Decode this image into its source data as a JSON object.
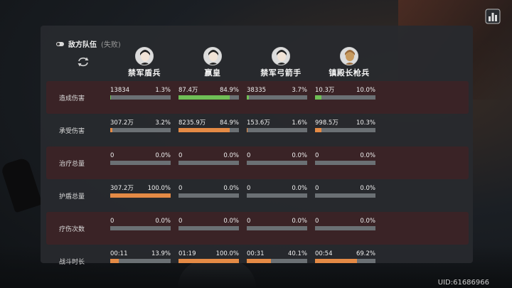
{
  "colors": {
    "orange": "#e48a45",
    "green": "#6fbf56",
    "track": "#6b7074"
  },
  "header": {
    "team_title": "敌方队伍",
    "team_status": "(失败)"
  },
  "uid": "UID:61686966",
  "heroes": [
    {
      "name": "禁军盾兵",
      "avatar_icon": "male-soldier-avatar-icon"
    },
    {
      "name": "嬴皇",
      "avatar_icon": "female-emperor-avatar-icon"
    },
    {
      "name": "禁军弓箭手",
      "avatar_icon": "male-archer-avatar-icon"
    },
    {
      "name": "镇殿长枪兵",
      "avatar_icon": "armored-spearman-avatar-icon"
    }
  ],
  "rows": [
    {
      "label": "造成伤害",
      "highlight": true,
      "fill_color": "green",
      "cells": [
        {
          "value": "13834",
          "pct": "1.3%",
          "fill": 0.013
        },
        {
          "value": "87.4万",
          "pct": "84.9%",
          "fill": 0.849
        },
        {
          "value": "38335",
          "pct": "3.7%",
          "fill": 0.037
        },
        {
          "value": "10.3万",
          "pct": "10.0%",
          "fill": 0.1
        }
      ]
    },
    {
      "label": "承受伤害",
      "highlight": false,
      "fill_color": "orange",
      "cells": [
        {
          "value": "307.2万",
          "pct": "3.2%",
          "fill": 0.032
        },
        {
          "value": "8235.9万",
          "pct": "84.9%",
          "fill": 0.849
        },
        {
          "value": "153.6万",
          "pct": "1.6%",
          "fill": 0.016
        },
        {
          "value": "998.5万",
          "pct": "10.3%",
          "fill": 0.103
        }
      ]
    },
    {
      "label": "治疗总量",
      "highlight": true,
      "fill_color": "green",
      "cells": [
        {
          "value": "0",
          "pct": "0.0%",
          "fill": 0
        },
        {
          "value": "0",
          "pct": "0.0%",
          "fill": 0
        },
        {
          "value": "0",
          "pct": "0.0%",
          "fill": 0
        },
        {
          "value": "0",
          "pct": "0.0%",
          "fill": 0
        }
      ]
    },
    {
      "label": "护盾总量",
      "highlight": false,
      "fill_color": "orange",
      "cells": [
        {
          "value": "307.2万",
          "pct": "100.0%",
          "fill": 1.0
        },
        {
          "value": "0",
          "pct": "0.0%",
          "fill": 0
        },
        {
          "value": "0",
          "pct": "0.0%",
          "fill": 0
        },
        {
          "value": "0",
          "pct": "0.0%",
          "fill": 0
        }
      ]
    },
    {
      "label": "疗伤次数",
      "highlight": true,
      "fill_color": "green",
      "cells": [
        {
          "value": "0",
          "pct": "0.0%",
          "fill": 0
        },
        {
          "value": "0",
          "pct": "0.0%",
          "fill": 0
        },
        {
          "value": "0",
          "pct": "0.0%",
          "fill": 0
        },
        {
          "value": "0",
          "pct": "0.0%",
          "fill": 0
        }
      ]
    },
    {
      "label": "战斗时长",
      "highlight": false,
      "fill_color": "orange",
      "cells": [
        {
          "value": "00:11",
          "pct": "13.9%",
          "fill": 0.139
        },
        {
          "value": "01:19",
          "pct": "100.0%",
          "fill": 1.0
        },
        {
          "value": "00:31",
          "pct": "40.1%",
          "fill": 0.401
        },
        {
          "value": "00:54",
          "pct": "69.2%",
          "fill": 0.692
        }
      ]
    }
  ]
}
